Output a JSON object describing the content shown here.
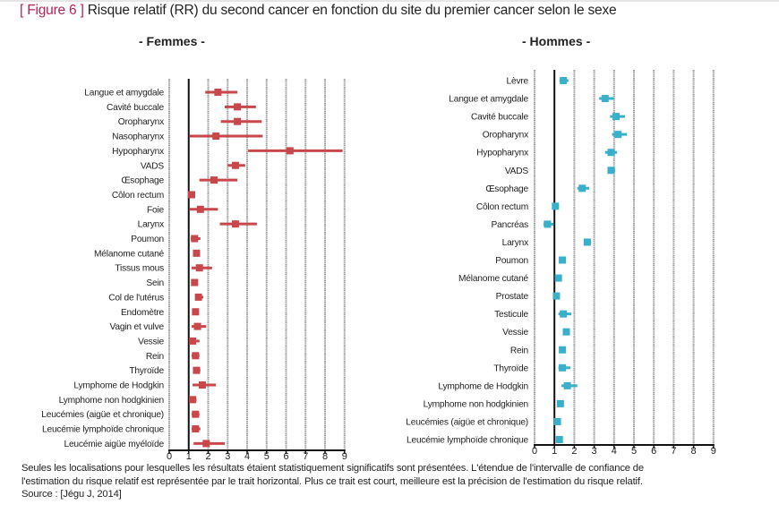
{
  "figure": {
    "label": "[ Figure 6 ]",
    "title": "Risque relatif (RR) du second cancer en fonction du site du premier cancer selon le sexe",
    "accent_color": "#b3245c"
  },
  "caption": {
    "lines": [
      "Seules les localisations pour lesquelles les résultats étaient statistiquement significatifs sont présentées. L'étendue de l'intervalle de confiance de",
      "l'estimation du risque relatif est représentée par le trait horizontal. Plus ce trait est court, meilleure est la précision de l'estimation du risque relatif.",
      "Source : [Jégu J, 2014]"
    ]
  },
  "chart_data": [
    {
      "type": "scatter",
      "subtype": "forest-plot",
      "title": "- Femmes -",
      "xlabel": "",
      "ylabel": "",
      "xlim": [
        0,
        9
      ],
      "xticks": [
        "0",
        "1",
        "2",
        "3",
        "4",
        "5",
        "6",
        "7",
        "8",
        "9"
      ],
      "reference_line": 1,
      "grid": true,
      "color": "#c9474a",
      "categories": [
        "Langue et amygdale",
        "Cavité buccale",
        "Oropharynx",
        "Nasopharynx",
        "Hypopharynx",
        "VADS",
        "Œsophage",
        "Côlon rectum",
        "Foie",
        "Larynx",
        "Poumon",
        "Mélanome cutané",
        "Tissus mous",
        "Sein",
        "Col de l'utérus",
        "Endomètre",
        "Vagin et vulve",
        "Vessie",
        "Rein",
        "Thyroïde",
        "Lymphome de Hodgkin",
        "Lymphome non hodgkinien",
        "Leucémies (aigüe et chronique)",
        "Leucémie lymphoïde chronique",
        "Leucémie aigüe myéloïde"
      ],
      "rr": [
        2.5,
        3.5,
        3.5,
        2.4,
        6.2,
        3.4,
        2.3,
        1.15,
        1.6,
        3.4,
        1.3,
        1.4,
        1.55,
        1.3,
        1.5,
        1.35,
        1.45,
        1.2,
        1.35,
        1.4,
        1.7,
        1.2,
        1.35,
        1.35,
        1.9
      ],
      "ci_low": [
        1.85,
        2.85,
        2.65,
        1.05,
        4.05,
        3.0,
        1.55,
        1.15,
        1.05,
        2.6,
        1.1,
        1.25,
        1.15,
        1.3,
        1.35,
        1.35,
        1.15,
        1.05,
        1.15,
        1.25,
        1.2,
        1.05,
        1.15,
        1.15,
        1.25
      ],
      "ci_high": [
        3.5,
        4.45,
        4.75,
        4.8,
        8.9,
        3.9,
        3.5,
        1.15,
        2.5,
        4.5,
        1.6,
        1.55,
        2.2,
        1.3,
        1.75,
        1.35,
        1.9,
        1.55,
        1.55,
        1.6,
        2.4,
        1.4,
        1.55,
        1.6,
        2.85
      ]
    },
    {
      "type": "scatter",
      "subtype": "forest-plot",
      "title": "- Hommes -",
      "xlabel": "",
      "ylabel": "",
      "xlim": [
        0,
        9
      ],
      "xticks": [
        "0",
        "1",
        "2",
        "3",
        "4",
        "5",
        "6",
        "7",
        "8",
        "9"
      ],
      "reference_line": 1,
      "grid": true,
      "color": "#3aafc9",
      "categories": [
        "Lèvre",
        "Langue et amygdale",
        "Cavité buccale",
        "Oropharynx",
        "Hypopharynx",
        "VADS",
        "Œsophage",
        "Côlon rectum",
        "Pancréas",
        "Larynx",
        "Poumon",
        "Mélanome cutané",
        "Prostate",
        "Testicule",
        "Vessie",
        "Rein",
        "Thyroïde",
        "Lymphome de Hodgkin",
        "Lymphome non hodgkinien",
        "Leucémies (aigüe et chronique)",
        "Leucémie lymphoïde chronique"
      ],
      "rr": [
        1.45,
        3.55,
        4.1,
        4.2,
        3.85,
        3.85,
        2.4,
        1.05,
        0.65,
        2.65,
        1.4,
        1.2,
        1.1,
        1.45,
        1.6,
        1.4,
        1.4,
        1.65,
        1.3,
        1.15,
        1.25
      ],
      "ci_low": [
        1.25,
        3.25,
        3.8,
        3.9,
        3.55,
        3.7,
        2.15,
        1.05,
        0.45,
        2.5,
        1.4,
        1.1,
        1.1,
        1.2,
        1.5,
        1.35,
        1.2,
        1.35,
        1.2,
        1.1,
        1.15
      ],
      "ci_high": [
        1.7,
        4.0,
        4.55,
        4.65,
        4.15,
        4.05,
        2.75,
        1.05,
        0.95,
        2.85,
        1.4,
        1.3,
        1.1,
        1.85,
        1.75,
        1.45,
        1.8,
        2.15,
        1.4,
        1.25,
        1.35
      ]
    }
  ]
}
